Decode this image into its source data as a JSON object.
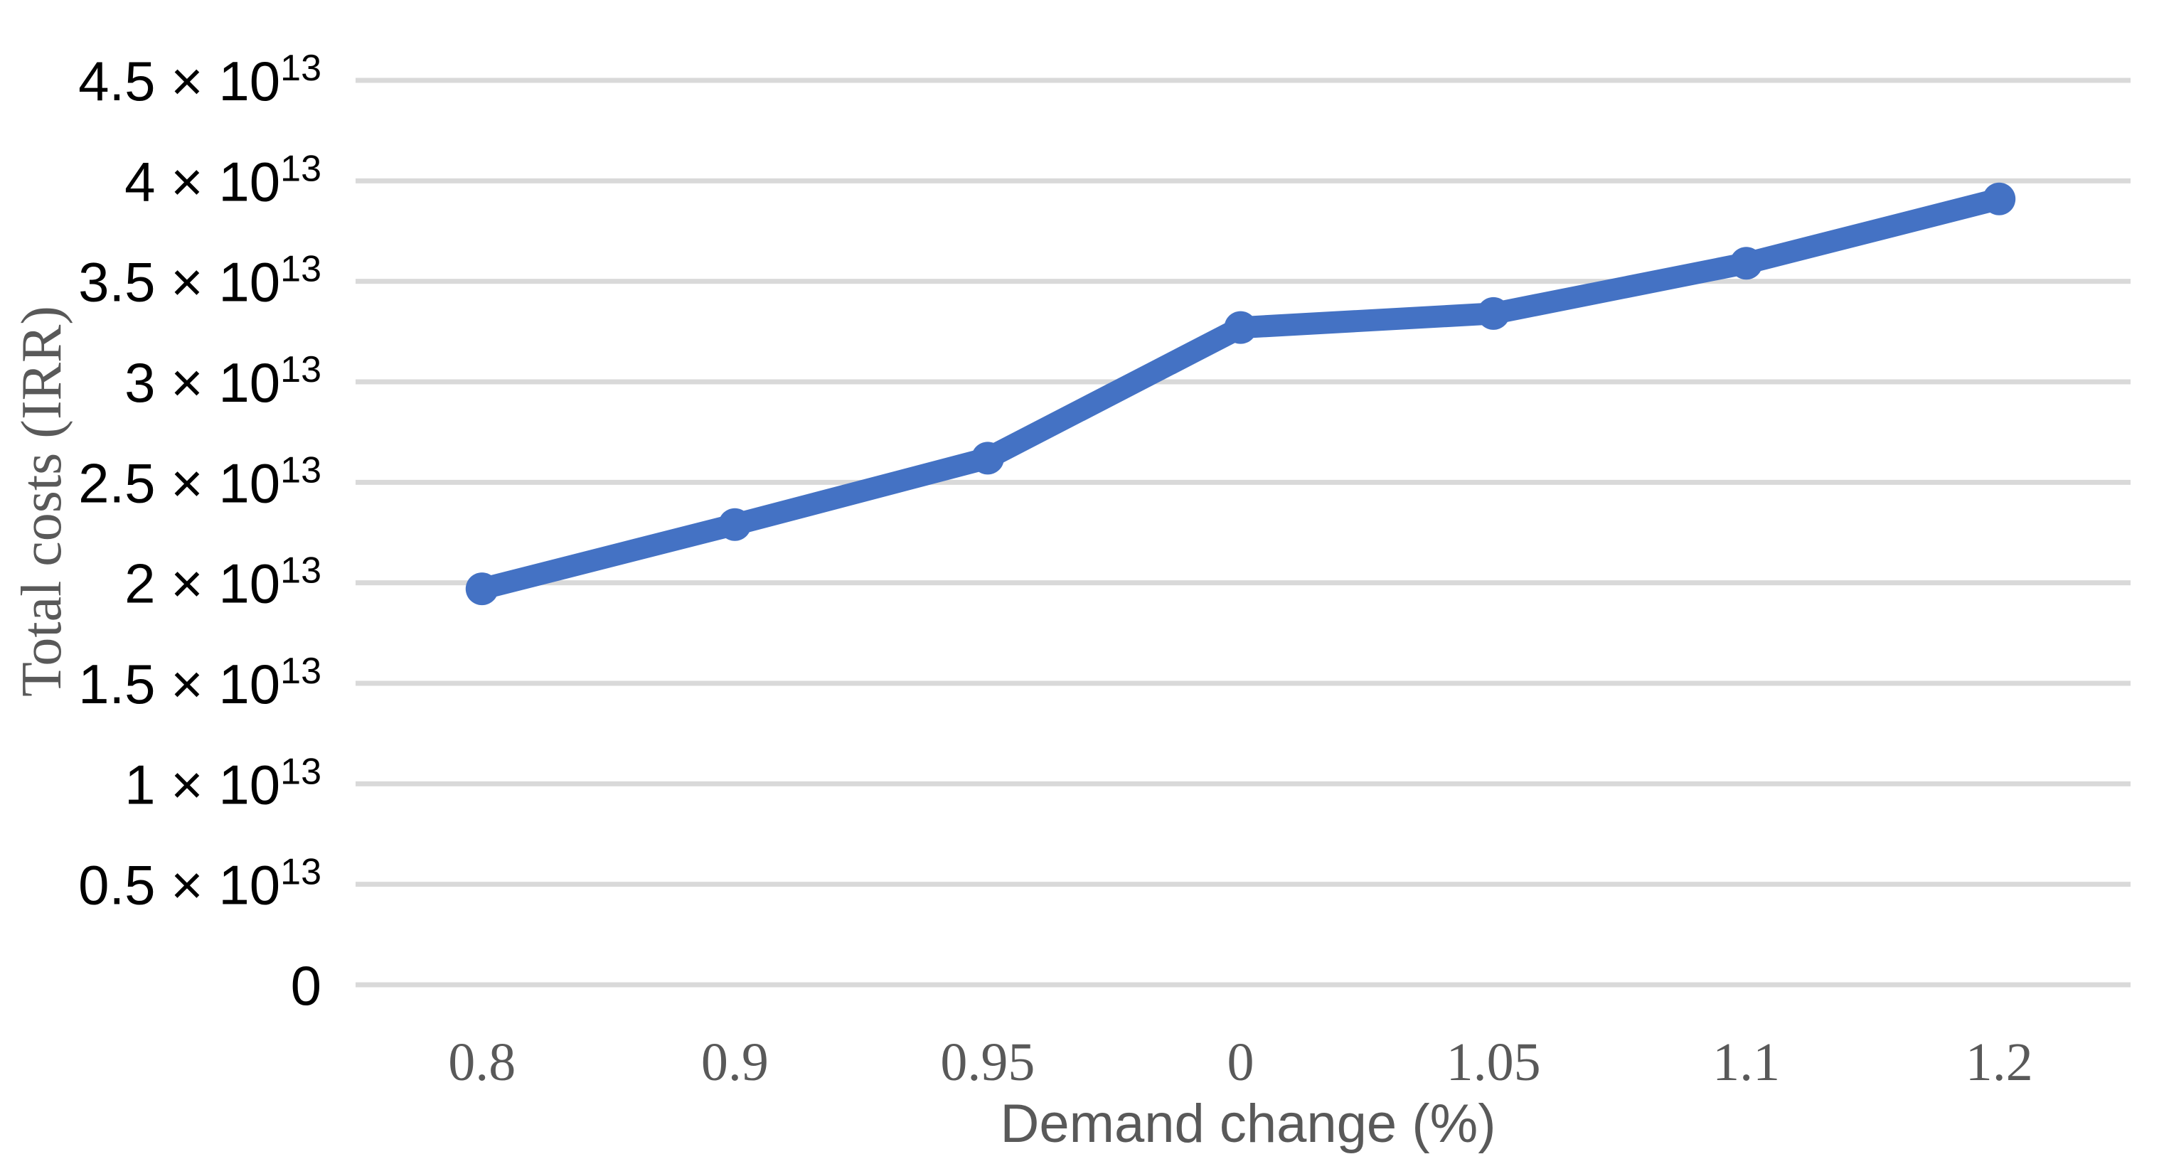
{
  "chart_data": {
    "type": "line",
    "title": "",
    "xlabel": "Demand change (%)",
    "ylabel": "Total costs (IRR)",
    "categories": [
      "0.8",
      "0.9",
      "0.95",
      "0",
      "1.05",
      "1.1",
      "1.2"
    ],
    "series": [
      {
        "name": "Total costs",
        "values": [
          19700000000000,
          22900000000000,
          26200000000000,
          32700000000000,
          33400000000000,
          35900000000000,
          39100000000000
        ]
      }
    ],
    "ylim": [
      0,
      45000000000000
    ],
    "yticks": [
      {
        "value": 0,
        "label_mantissa": "0",
        "label_exp": null
      },
      {
        "value": 5000000000000,
        "label_mantissa": "0.5",
        "label_exp": "13"
      },
      {
        "value": 10000000000000,
        "label_mantissa": "1",
        "label_exp": "13"
      },
      {
        "value": 15000000000000,
        "label_mantissa": "1.5",
        "label_exp": "13"
      },
      {
        "value": 20000000000000,
        "label_mantissa": "2",
        "label_exp": "13"
      },
      {
        "value": 25000000000000,
        "label_mantissa": "2.5",
        "label_exp": "13"
      },
      {
        "value": 30000000000000,
        "label_mantissa": "3",
        "label_exp": "13"
      },
      {
        "value": 35000000000000,
        "label_mantissa": "3.5",
        "label_exp": "13"
      },
      {
        "value": 40000000000000,
        "label_mantissa": "4",
        "label_exp": "13"
      },
      {
        "value": 45000000000000,
        "label_mantissa": "4.5",
        "label_exp": "13"
      }
    ],
    "times_symbol": "×",
    "base_text": "10",
    "grid": true,
    "legend": "none",
    "marker_shape": "circle",
    "colors": {
      "line": "#4472C4",
      "marker": "#4472C4",
      "gridline": "#D9D9D9",
      "ytick_text": "#000000",
      "xtick_text": "#595959",
      "axis_title_text": "#595959",
      "background": "#FFFFFF"
    }
  }
}
